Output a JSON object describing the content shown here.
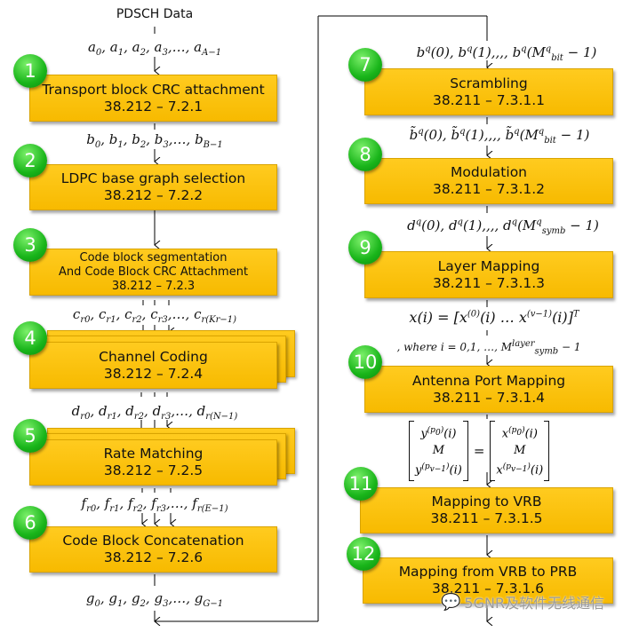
{
  "input_title": "PDSCH Data",
  "steps": [
    {
      "number": "1",
      "lines": [
        "Transport block CRC attachment",
        "38.212 – 7.2.1"
      ]
    },
    {
      "number": "2",
      "lines": [
        "LDPC base graph selection",
        "38.212 – 7.2.2"
      ]
    },
    {
      "number": "3",
      "lines": [
        "Code block segmentation",
        "And Code Block CRC Attachment",
        "38.212 – 7.2.3"
      ]
    },
    {
      "number": "4",
      "lines": [
        "Channel Coding",
        "38.212 – 7.2.4"
      ]
    },
    {
      "number": "5",
      "lines": [
        "Rate Matching",
        "38.212 – 7.2.5"
      ]
    },
    {
      "number": "6",
      "lines": [
        "Code Block Concatenation",
        "38.212 – 7.2.6"
      ]
    },
    {
      "number": "7",
      "lines": [
        "Scrambling",
        "38.211 – 7.3.1.1"
      ]
    },
    {
      "number": "8",
      "lines": [
        "Modulation",
        "38.211 – 7.3.1.2"
      ]
    },
    {
      "number": "9",
      "lines": [
        "Layer Mapping",
        "38.211 – 7.3.1.3"
      ]
    },
    {
      "number": "10",
      "lines": [
        "Antenna Port Mapping",
        "38.211 – 7.3.1.4"
      ]
    },
    {
      "number": "11",
      "lines": [
        "Mapping to VRB",
        "38.211 – 7.3.1.5"
      ]
    },
    {
      "number": "12",
      "lines": [
        "Mapping from VRB to PRB",
        "38.211 – 7.3.1.6"
      ]
    }
  ],
  "signals": {
    "a": "a_{0}, a_{1}, a_{2}, a_{3},…, a_{A−1}",
    "b": "b_{0}, b_{1}, b_{2}, b_{3},…, b_{B−1}",
    "c": "c_{r0}, c_{r1}, c_{r2}, c_{r3},…, c_{r(Kr−1)}",
    "d": "d_{r0}, d_{r1}, d_{r2}, d_{r3},…, d_{r(N−1)}",
    "f": "f_{r0}, f_{r1}, f_{r2}, f_{r3},…, f_{r(E−1)}",
    "g": "g_{0}, g_{1}, g_{2}, g_{3},…, g_{G−1}",
    "bq": "b^{q}(0), b^{q}(1),,,, b^{q}(M^{q}_{bit} − 1)",
    "btilde": "b̃^{q}(0), b̃^{q}(1),,,, b̃^{q}(M^{q}_{bit} − 1)",
    "dq": "d^{q}(0), d^{q}(1),,,, d^{q}(M^{q}_{symb} − 1)",
    "x": "x(i) = [x^{(0)}(i)   …   x^{(v−1)}(i)]^{T}",
    "where": ", where i = 0,1, …, M^{layer}_{symb} − 1",
    "matrix_left": [
      "y^{(p_{0})}(i)",
      "M",
      "y^{(p_{v−1})}(i)"
    ],
    "matrix_equals": "=",
    "matrix_right": [
      "x^{(p_{0})}(i)",
      "M",
      "x^{(p_{v−1})}(i)"
    ]
  },
  "colors": {
    "box": "#FFC000",
    "badge": "#19B51A",
    "line": "#000000"
  },
  "watermark": "5GNR及软件无线通信"
}
